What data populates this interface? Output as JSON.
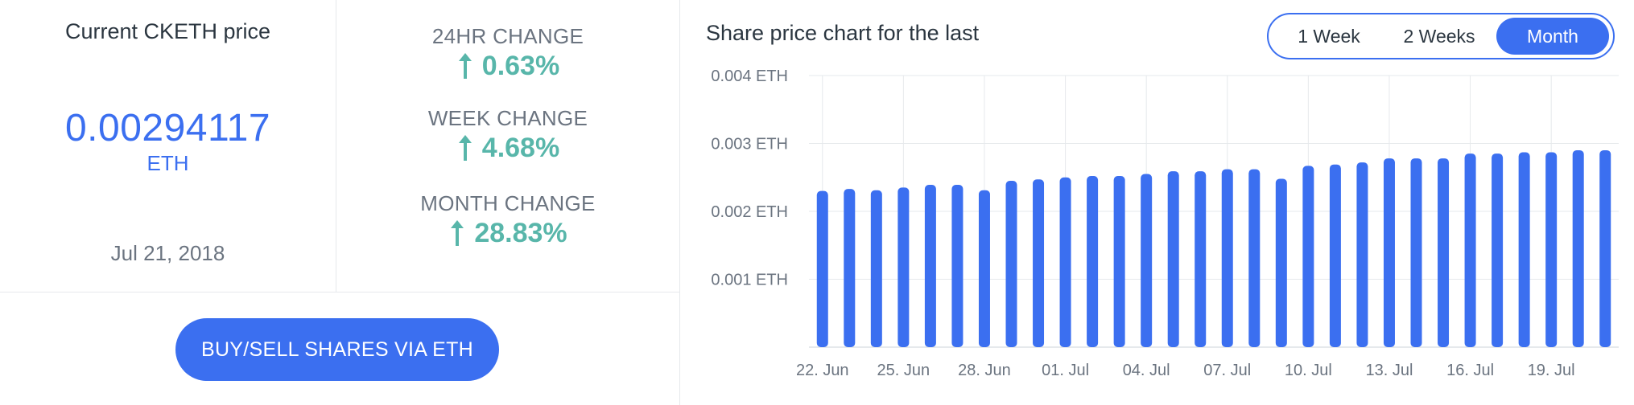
{
  "price_panel": {
    "title": "Current CKETH price",
    "value": "0.00294117",
    "unit": "ETH",
    "date": "Jul 21, 2018"
  },
  "changes": [
    {
      "label": "24HR CHANGE",
      "value": "0.63%",
      "direction": "up"
    },
    {
      "label": "WEEK CHANGE",
      "value": "4.68%",
      "direction": "up"
    },
    {
      "label": "MONTH CHANGE",
      "value": "28.83%",
      "direction": "up"
    }
  ],
  "buy_button": {
    "label": "BUY/SELL SHARES VIA ETH"
  },
  "chart_header": {
    "title": "Share price chart for the last",
    "ranges": [
      {
        "label": "1 Week",
        "active": false
      },
      {
        "label": "2 Weeks",
        "active": false
      },
      {
        "label": "Month",
        "active": true
      }
    ]
  },
  "colors": {
    "accent": "#3b6ff0",
    "positive": "#58b6aa",
    "grid": "#e6e9ec",
    "muted": "#6b7480"
  },
  "chart_data": {
    "type": "bar",
    "x_labels": [
      "22. Jun",
      "25. Jun",
      "28. Jun",
      "01. Jul",
      "04. Jul",
      "07. Jul",
      "10. Jul",
      "13. Jul",
      "16. Jul",
      "19. Jul"
    ],
    "x_label_days": [
      1,
      4,
      7,
      10,
      13,
      16,
      19,
      22,
      25,
      28
    ],
    "y_ticks": [
      {
        "value": 0.001,
        "label": "0.001 ETH"
      },
      {
        "value": 0.002,
        "label": "0.002 ETH"
      },
      {
        "value": 0.003,
        "label": "0.003 ETH"
      },
      {
        "value": 0.004,
        "label": "0.004 ETH"
      }
    ],
    "ylim": [
      0,
      0.004
    ],
    "grid": true,
    "series": [
      {
        "values": [
          0.0023,
          0.00233,
          0.00231,
          0.00235,
          0.00239,
          0.00239,
          0.00231,
          0.00245,
          0.00247,
          0.0025,
          0.00252,
          0.00252,
          0.00255,
          0.00259,
          0.00259,
          0.00262,
          0.00262,
          0.00248,
          0.00267,
          0.00269,
          0.00272,
          0.00278,
          0.00278,
          0.00278,
          0.00285,
          0.00285,
          0.00287,
          0.00287,
          0.0029,
          0.0029
        ]
      }
    ]
  }
}
